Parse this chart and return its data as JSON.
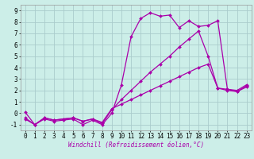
{
  "xlabel": "Windchill (Refroidissement éolien,°C)",
  "bg_color": "#cceee8",
  "line_color": "#aa00aa",
  "grid_color": "#aacccc",
  "series1_x": [
    0,
    1,
    2,
    3,
    4,
    5,
    6,
    7,
    8,
    9,
    10,
    11,
    12,
    13,
    14,
    15,
    16,
    17,
    18,
    19,
    20,
    21,
    22,
    23
  ],
  "series1_y": [
    0.1,
    -1.0,
    -0.5,
    -0.7,
    -0.6,
    -0.5,
    -1.0,
    -0.6,
    -1.0,
    0.0,
    2.5,
    6.7,
    8.3,
    8.8,
    8.5,
    8.6,
    7.5,
    8.1,
    7.6,
    7.7,
    8.1,
    2.1,
    1.9,
    2.4
  ],
  "series2_x": [
    0,
    1,
    2,
    3,
    4,
    5,
    6,
    7,
    8,
    9,
    10,
    11,
    12,
    13,
    14,
    15,
    16,
    17,
    18,
    19,
    20,
    21,
    22,
    23
  ],
  "series2_y": [
    -0.5,
    -1.0,
    -0.4,
    -0.6,
    -0.5,
    -0.4,
    -0.7,
    -0.5,
    -0.9,
    0.3,
    1.2,
    2.0,
    2.8,
    3.6,
    4.3,
    5.0,
    5.8,
    6.5,
    7.2,
    5.0,
    2.2,
    2.1,
    2.0,
    2.5
  ],
  "series3_x": [
    0,
    1,
    2,
    3,
    4,
    5,
    6,
    7,
    8,
    9,
    10,
    11,
    12,
    13,
    14,
    15,
    16,
    17,
    18,
    19,
    20,
    21,
    22,
    23
  ],
  "series3_y": [
    -0.4,
    -1.0,
    -0.4,
    -0.6,
    -0.5,
    -0.4,
    -0.7,
    -0.5,
    -0.8,
    0.4,
    0.8,
    1.2,
    1.6,
    2.0,
    2.4,
    2.8,
    3.2,
    3.6,
    4.0,
    4.3,
    2.2,
    2.0,
    1.9,
    2.3
  ],
  "xlim": [
    -0.5,
    23.5
  ],
  "ylim": [
    -1.5,
    9.5
  ],
  "yticks": [
    -1,
    0,
    1,
    2,
    3,
    4,
    5,
    6,
    7,
    8,
    9
  ],
  "xticks": [
    0,
    1,
    2,
    3,
    4,
    5,
    6,
    7,
    8,
    9,
    10,
    11,
    12,
    13,
    14,
    15,
    16,
    17,
    18,
    19,
    20,
    21,
    22,
    23
  ],
  "tick_fontsize": 5.5,
  "xlabel_fontsize": 5.5,
  "marker_size": 2.0,
  "line_width": 0.9
}
